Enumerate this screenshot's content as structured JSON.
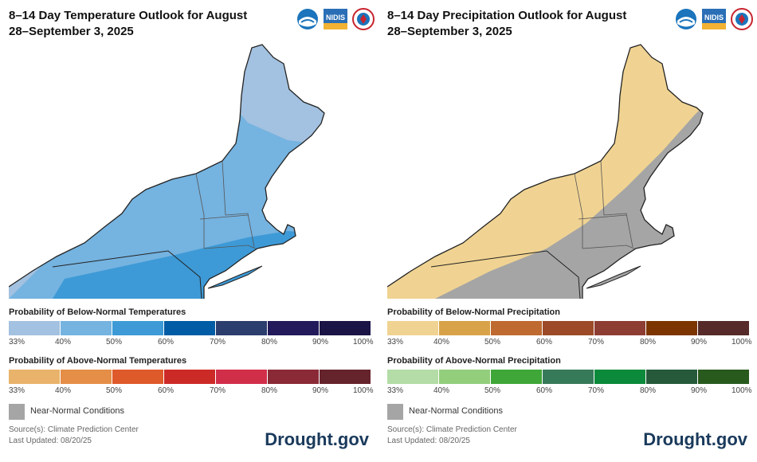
{
  "temperature": {
    "title_line1": "8–14 Day Temperature Outlook for August",
    "title_line2": "28–September 3, 2025",
    "logos": [
      "NOAA",
      "NIDIS",
      "NWS"
    ],
    "below": {
      "title": "Probability of Below-Normal Temperatures",
      "colors": [
        "#a3c1e0",
        "#75b3e0",
        "#3d9ad6",
        "#005ca5",
        "#2c3e6e",
        "#221a5a",
        "#1b1446"
      ]
    },
    "above": {
      "title": "Probability of Above-Normal Temperatures",
      "colors": [
        "#e9b36b",
        "#e58e48",
        "#df5a2a",
        "#cc2a27",
        "#d12e4a",
        "#8a2a36",
        "#65232c"
      ]
    },
    "near_normal": "Near-Normal Conditions",
    "source": "Source(s): Climate Prediction Center",
    "updated": "Last Updated: 08/20/25",
    "brand": "Drought.gov",
    "map_colors": {
      "light": "#a3c1e0",
      "mid": "#75b3e0",
      "dark": "#3d9ad6"
    }
  },
  "precipitation": {
    "title_line1": "8–14 Day Precipitation Outlook for August",
    "title_line2": "28–September 3, 2025",
    "logos": [
      "NOAA",
      "NIDIS",
      "NWS"
    ],
    "below": {
      "title": "Probability of Below-Normal Precipitation",
      "colors": [
        "#f0d392",
        "#d8a348",
        "#bf6a30",
        "#9c4a28",
        "#8e3d33",
        "#7c3500",
        "#552a28"
      ]
    },
    "above": {
      "title": "Probability of Above-Normal Precipitation",
      "colors": [
        "#b3dca6",
        "#92ce7c",
        "#3fa638",
        "#377a5a",
        "#0a8a3a",
        "#265a3a",
        "#285a1e"
      ]
    },
    "near_normal": "Near-Normal Conditions",
    "source": "Source(s): Climate Prediction Center",
    "updated": "Last Updated: 08/20/25",
    "brand": "Drought.gov",
    "map_colors": {
      "dry": "#f0d392",
      "nearnormal": "#a5a5a5"
    }
  },
  "ticks": [
    "33%",
    "40%",
    "50%",
    "60%",
    "70%",
    "80%",
    "90%",
    "100%"
  ]
}
